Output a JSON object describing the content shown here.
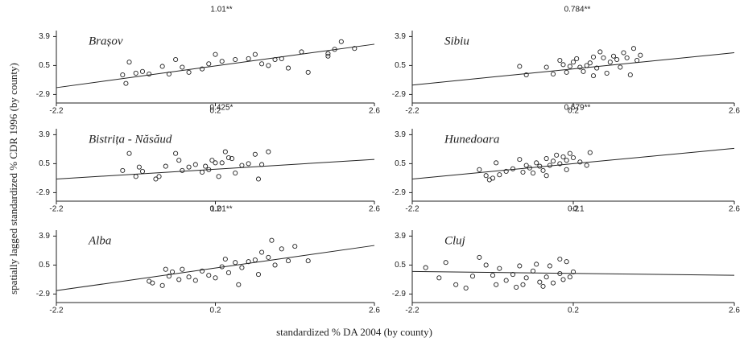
{
  "ylabel": "spatially lagged standardized % CDR 1996   (by county)",
  "xlabel": "standardized % DA 2004 (by county)",
  "chart_data": [
    {
      "type": "scatter",
      "title": "Brașov",
      "annotation": "1.01**",
      "color": "#222222",
      "x": [
        -1.2,
        -1.1,
        -1.15,
        -1.0,
        -0.9,
        -0.8,
        -0.6,
        -0.5,
        -0.4,
        -0.3,
        -0.2,
        0.0,
        0.1,
        0.2,
        0.3,
        0.5,
        0.7,
        0.8,
        0.9,
        1.0,
        1.1,
        1.2,
        1.3,
        1.5,
        1.6,
        1.9,
        2.0,
        2.1,
        2.3,
        1.9
      ],
      "y": [
        -0.6,
        0.9,
        -1.6,
        -0.4,
        -0.2,
        -0.5,
        0.4,
        -0.5,
        1.2,
        0.3,
        -0.3,
        0.1,
        0.7,
        1.8,
        1.0,
        1.2,
        1.3,
        1.8,
        0.7,
        0.5,
        1.2,
        1.3,
        0.2,
        2.1,
        -0.3,
        1.6,
        2.4,
        3.3,
        2.5,
        1.9
      ],
      "fit": {
        "x": [
          -2.2,
          2.6
        ],
        "y": [
          -2.1,
          3.0
        ]
      },
      "xlim": [
        -2.2,
        2.6
      ],
      "ylim": [
        -3.9,
        4.6
      ],
      "xticks": [
        -2.2,
        0.2,
        2.6
      ],
      "yticks": [
        -2.9,
        0.5,
        3.9
      ]
    },
    {
      "type": "scatter",
      "title": "Sibiu",
      "annotation": "0.784**",
      "color": "#222222",
      "x": [
        -0.6,
        -0.5,
        -0.2,
        -0.1,
        0.0,
        0.05,
        0.1,
        0.15,
        0.2,
        0.25,
        0.3,
        0.35,
        0.4,
        0.45,
        0.5,
        0.55,
        0.6,
        0.65,
        0.7,
        0.75,
        0.8,
        0.85,
        0.9,
        0.95,
        1.0,
        1.05,
        1.1,
        1.15,
        1.2,
        0.5
      ],
      "y": [
        0.4,
        -0.6,
        0.3,
        -0.5,
        1.1,
        0.6,
        -0.3,
        0.4,
        0.9,
        1.3,
        0.3,
        -0.2,
        0.5,
        0.8,
        1.5,
        0.2,
        2.1,
        1.4,
        -0.4,
        0.9,
        1.6,
        1.2,
        0.3,
        2.0,
        1.4,
        -0.6,
        2.5,
        1.1,
        1.7,
        -0.7
      ],
      "fit": {
        "x": [
          -2.2,
          2.6
        ],
        "y": [
          -1.8,
          2.0
        ]
      },
      "xlim": [
        -2.2,
        2.6
      ],
      "ylim": [
        -3.9,
        4.6
      ],
      "xticks": [
        -2.2,
        0.2,
        2.6
      ],
      "yticks": [
        -2.9,
        0.5,
        3.9
      ]
    },
    {
      "type": "scatter",
      "title": "Bistrița - Năsăud",
      "annotation": "0.425*",
      "color": "#222222",
      "x": [
        -1.2,
        -1.1,
        -1.0,
        -0.95,
        -0.9,
        -0.7,
        -0.65,
        -0.55,
        -0.4,
        -0.35,
        -0.3,
        -0.2,
        -0.1,
        0.0,
        0.05,
        0.1,
        0.15,
        0.2,
        0.25,
        0.3,
        0.35,
        0.4,
        0.45,
        0.5,
        0.6,
        0.7,
        0.8,
        0.85,
        0.9,
        1.0
      ],
      "y": [
        -0.3,
        1.7,
        -1.0,
        0.1,
        -0.4,
        -1.3,
        -1.0,
        0.2,
        1.7,
        0.9,
        -0.3,
        0.1,
        0.4,
        -0.5,
        0.2,
        -0.2,
        0.9,
        0.6,
        -1.0,
        0.6,
        1.9,
        1.2,
        1.1,
        -0.6,
        0.3,
        0.5,
        1.6,
        -1.3,
        0.4,
        1.9
      ],
      "fit": {
        "x": [
          -2.2,
          2.6
        ],
        "y": [
          -1.3,
          1.0
        ]
      },
      "xlim": [
        -2.2,
        2.6
      ],
      "ylim": [
        -3.9,
        4.6
      ],
      "xticks": [
        -2.2,
        0.2,
        2.6
      ],
      "yticks": [
        -2.9,
        0.5,
        3.9
      ]
    },
    {
      "type": "scatter",
      "title": "Hunedoara",
      "annotation": "0.679**",
      "color": "#222222",
      "x": [
        -1.2,
        -1.1,
        -1.05,
        -1.0,
        -0.95,
        -0.9,
        -0.8,
        -0.7,
        -0.6,
        -0.55,
        -0.5,
        -0.45,
        -0.4,
        -0.35,
        -0.3,
        -0.25,
        -0.2,
        -0.15,
        -0.1,
        -0.05,
        0.0,
        0.05,
        0.1,
        0.15,
        0.2,
        0.3,
        0.4,
        0.45,
        0.1,
        -0.2
      ],
      "y": [
        -0.2,
        -0.9,
        -1.4,
        -1.2,
        0.6,
        -0.8,
        -0.4,
        -0.1,
        1.0,
        -0.5,
        0.3,
        0.0,
        -0.6,
        0.6,
        0.2,
        -0.3,
        1.1,
        0.3,
        0.8,
        1.5,
        0.5,
        1.3,
        0.9,
        1.7,
        1.2,
        0.7,
        0.3,
        1.8,
        -0.2,
        -0.9
      ],
      "fit": {
        "x": [
          -2.2,
          2.6
        ],
        "y": [
          -1.3,
          2.3
        ]
      },
      "xlim": [
        -2.2,
        2.6
      ],
      "ylim": [
        -3.9,
        4.6
      ],
      "xticks": [
        -2.2,
        0.2,
        2.6
      ],
      "yticks": [
        -2.9,
        0.5,
        3.9
      ]
    },
    {
      "type": "scatter",
      "title": "Alba",
      "annotation": "1.01**",
      "color": "#222222",
      "x": [
        -0.8,
        -0.75,
        -0.6,
        -0.55,
        -0.5,
        -0.45,
        -0.35,
        -0.3,
        -0.2,
        -0.1,
        0.0,
        0.1,
        0.2,
        0.3,
        0.35,
        0.4,
        0.5,
        0.55,
        0.6,
        0.7,
        0.8,
        0.85,
        0.9,
        1.0,
        1.05,
        1.1,
        1.2,
        1.3,
        1.4,
        1.6
      ],
      "y": [
        -1.4,
        -1.6,
        -1.9,
        0.0,
        -0.8,
        -0.3,
        -1.2,
        0.0,
        -0.9,
        -1.3,
        -0.2,
        -0.7,
        -1.0,
        0.3,
        1.2,
        -0.4,
        0.8,
        -1.8,
        0.2,
        0.9,
        1.1,
        -0.6,
        2.0,
        1.4,
        3.4,
        0.5,
        2.4,
        1.0,
        2.7,
        1.0
      ],
      "fit": {
        "x": [
          -2.2,
          2.6
        ],
        "y": [
          -2.5,
          2.8
        ]
      },
      "xlim": [
        -2.2,
        2.6
      ],
      "ylim": [
        -3.9,
        4.6
      ],
      "xticks": [
        -2.2,
        0.2,
        2.6
      ],
      "yticks": [
        -2.9,
        0.5,
        3.9
      ]
    },
    {
      "type": "scatter",
      "title": "Cluj",
      "annotation": "-0.1",
      "color": "#222222",
      "x": [
        -2.0,
        -1.8,
        -1.7,
        -1.55,
        -1.4,
        -1.3,
        -1.2,
        -1.1,
        -1.0,
        -0.95,
        -0.9,
        -0.8,
        -0.7,
        -0.6,
        -0.55,
        -0.5,
        -0.4,
        -0.35,
        -0.3,
        -0.2,
        -0.15,
        -0.1,
        0.0,
        0.05,
        0.1,
        0.15,
        0.2,
        -0.25,
        -0.65,
        0.0
      ],
      "y": [
        0.2,
        -1.0,
        0.8,
        -1.8,
        -2.2,
        -0.8,
        1.4,
        0.5,
        -0.7,
        -1.8,
        0.1,
        -1.3,
        -0.6,
        0.4,
        -1.8,
        -1.0,
        -0.2,
        0.6,
        -1.5,
        -0.9,
        0.4,
        -1.6,
        -0.5,
        -1.2,
        0.9,
        -0.9,
        -0.3,
        -2.0,
        -2.1,
        1.2
      ],
      "fit": {
        "x": [
          -2.2,
          2.6
        ],
        "y": [
          -0.25,
          -0.7
        ]
      },
      "xlim": [
        -2.2,
        2.6
      ],
      "ylim": [
        -3.9,
        4.6
      ],
      "xticks": [
        -2.2,
        0.2,
        2.6
      ],
      "yticks": [
        -2.9,
        0.5,
        3.9
      ]
    }
  ]
}
